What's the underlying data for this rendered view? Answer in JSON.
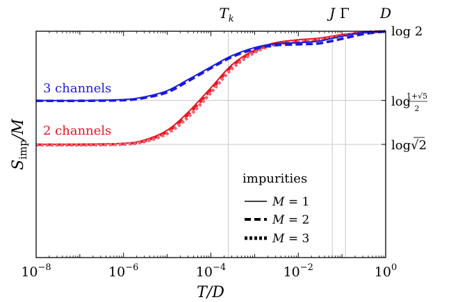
{
  "chart_data": {
    "type": "line",
    "title": "",
    "xlabel": "T/D",
    "ylabel": "S_imp/M",
    "xscale": "log",
    "xlim": [
      1e-08,
      1
    ],
    "ylim": [
      0,
      0.6931
    ],
    "x_ticks": [
      {
        "value": 1e-08,
        "base": "10",
        "exp": "−8"
      },
      {
        "value": 1e-06,
        "base": "10",
        "exp": "−6"
      },
      {
        "value": 0.0001,
        "base": "10",
        "exp": "−4"
      },
      {
        "value": 0.01,
        "base": "10",
        "exp": "−2"
      },
      {
        "value": 1,
        "base": "10",
        "exp": "0"
      }
    ],
    "right_y_ticks": [
      {
        "value": 0.6931,
        "label": "log 2"
      },
      {
        "value": 0.4812,
        "label": "log((1+√5)/2)"
      },
      {
        "value": 0.3466,
        "label": "log √2"
      }
    ],
    "top_markers": [
      {
        "value": 0.00025,
        "label": "T_k"
      },
      {
        "value": 0.06,
        "label": "J"
      },
      {
        "value": 0.12,
        "label": "Γ"
      },
      {
        "value": 1.0,
        "label": "D"
      }
    ],
    "annotations": [
      {
        "text": "3 channels",
        "color": "#1a1adc"
      },
      {
        "text": "2 channels",
        "color": "#e8141e"
      }
    ],
    "legend": {
      "title": "impurities",
      "position": "bottom-right",
      "entries": [
        {
          "style": "solid",
          "label": "M = 1"
        },
        {
          "style": "dashed",
          "label": "M = 2"
        },
        {
          "style": "dotted",
          "label": "M = 3"
        }
      ]
    },
    "colors": {
      "three_channels": "#1a1adc",
      "two_channels": "#e8141e",
      "two_channels_m3": "#f06070"
    },
    "grid": "reference lines at marked x and y values",
    "series": [
      {
        "group": "3 channels",
        "style": "solid",
        "x": [
          1e-08,
          1e-07,
          1e-06,
          3e-06,
          1e-05,
          3e-05,
          0.0001,
          0.0003,
          0.001,
          0.003,
          0.01,
          0.03,
          0.1,
          0.3,
          1
        ],
        "y": [
          0.481,
          0.481,
          0.484,
          0.492,
          0.511,
          0.545,
          0.584,
          0.618,
          0.643,
          0.655,
          0.658,
          0.663,
          0.678,
          0.689,
          0.693
        ]
      },
      {
        "group": "3 channels",
        "style": "dashed",
        "x": [
          1e-08,
          1e-07,
          1e-06,
          3e-06,
          1e-05,
          3e-05,
          0.0001,
          0.0003,
          0.001,
          0.003,
          0.01,
          0.03,
          0.1,
          0.3,
          1
        ],
        "y": [
          0.48,
          0.48,
          0.482,
          0.489,
          0.506,
          0.54,
          0.58,
          0.614,
          0.639,
          0.65,
          0.653,
          0.656,
          0.67,
          0.684,
          0.693
        ]
      },
      {
        "group": "2 channels",
        "style": "solid",
        "x": [
          1e-08,
          1e-07,
          1e-06,
          3e-06,
          1e-05,
          3e-05,
          0.0001,
          0.0003,
          0.001,
          0.003,
          0.01,
          0.03,
          0.1,
          0.3,
          1
        ],
        "y": [
          0.347,
          0.347,
          0.35,
          0.36,
          0.39,
          0.445,
          0.52,
          0.59,
          0.636,
          0.658,
          0.667,
          0.672,
          0.683,
          0.69,
          0.693
        ]
      },
      {
        "group": "2 channels",
        "style": "dashed",
        "x": [
          1e-08,
          1e-07,
          1e-06,
          3e-06,
          1e-05,
          3e-05,
          0.0001,
          0.0003,
          0.001,
          0.003,
          0.01,
          0.03,
          0.1,
          0.3,
          1
        ],
        "y": [
          0.346,
          0.346,
          0.348,
          0.357,
          0.385,
          0.437,
          0.512,
          0.584,
          0.632,
          0.654,
          0.662,
          0.668,
          0.68,
          0.689,
          0.693
        ]
      },
      {
        "group": "2 channels",
        "style": "dotted",
        "x": [
          1e-08,
          1e-07,
          1e-06,
          3e-06,
          1e-05,
          3e-05,
          0.0001,
          0.0003,
          0.001,
          0.003,
          0.01,
          0.03,
          0.1,
          0.3,
          1
        ],
        "y": [
          0.345,
          0.345,
          0.347,
          0.355,
          0.38,
          0.43,
          0.505,
          0.578,
          0.628,
          0.652,
          0.661,
          0.667,
          0.679,
          0.689,
          0.693
        ]
      }
    ]
  }
}
